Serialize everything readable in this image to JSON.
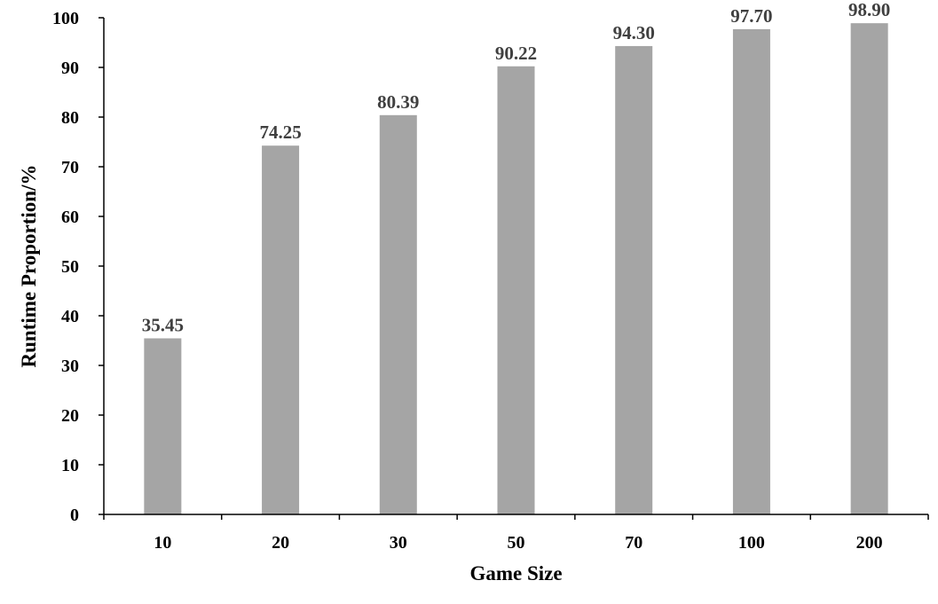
{
  "chart_data": {
    "type": "bar",
    "categories": [
      "10",
      "20",
      "30",
      "50",
      "70",
      "100",
      "200"
    ],
    "values": [
      35.45,
      74.25,
      80.39,
      90.22,
      94.3,
      97.7,
      98.9
    ],
    "value_labels": [
      "35.45",
      "74.25",
      "80.39",
      "90.22",
      "94.30",
      "97.70",
      "98.90"
    ],
    "title": "",
    "xlabel": "Game Size",
    "ylabel": "Runtime Proportion/%",
    "ylim": [
      0,
      100
    ],
    "yticks": [
      "0",
      "10",
      "20",
      "30",
      "40",
      "50",
      "60",
      "70",
      "80",
      "90",
      "100"
    ],
    "grid": false,
    "legend": "none",
    "bar_color": "#a5a5a5",
    "label_color": "#404040"
  }
}
